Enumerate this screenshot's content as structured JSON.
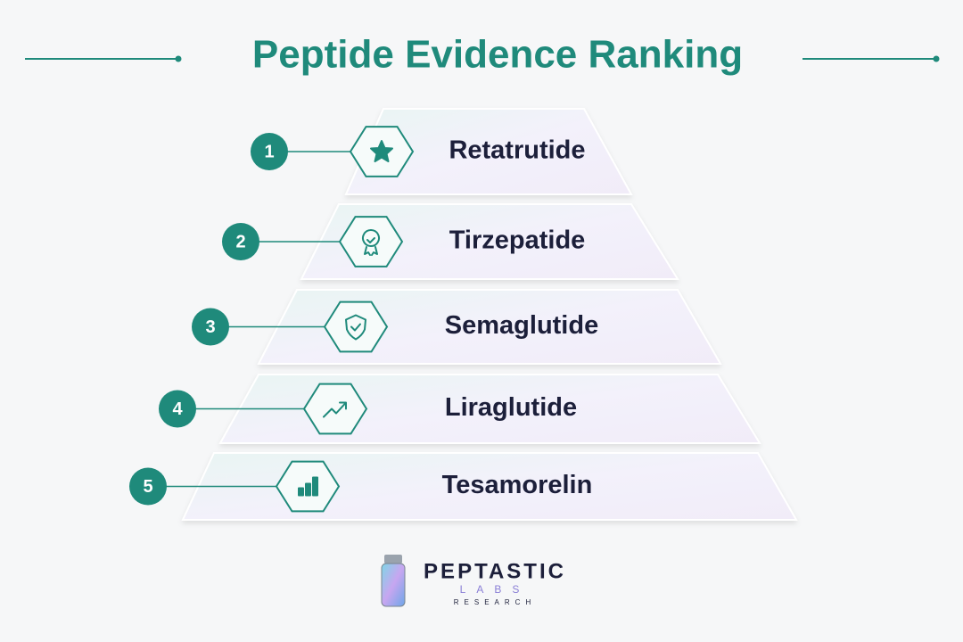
{
  "header": {
    "title": "Peptide Evidence Ranking"
  },
  "tiers": [
    {
      "rank": "1",
      "label": "Retatrutide"
    },
    {
      "rank": "2",
      "label": "Tirzepatide"
    },
    {
      "rank": "3",
      "label": "Semaglutide"
    },
    {
      "rank": "4",
      "label": "Liraglutide"
    },
    {
      "rank": "5",
      "label": "Tesamorelin"
    }
  ],
  "logo": {
    "name": "PEPTASTIC",
    "line2": "LABS",
    "line3": "RESEARCH"
  }
}
